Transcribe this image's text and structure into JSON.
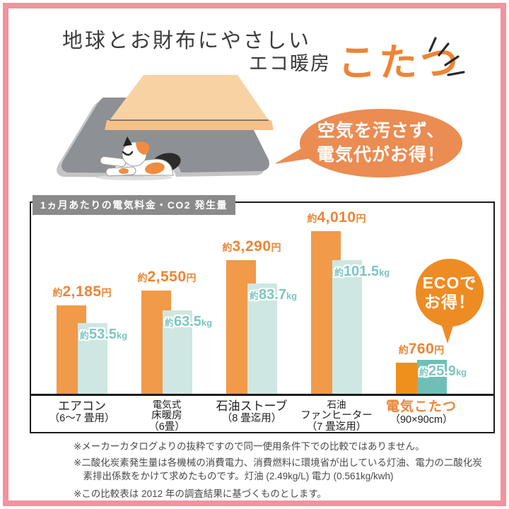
{
  "header": {
    "title": "地球とお財布にやさしい",
    "subtitle_prefix": "エコ暖房",
    "subtitle_main": "こたつ"
  },
  "bubble": {
    "lines": [
      "空気を汚さず、",
      "電気代がお得！"
    ]
  },
  "eco_badge": {
    "lines": [
      "ECOで",
      "お得！"
    ]
  },
  "chart_data": {
    "type": "bar",
    "title": "1ヵ月あたりの電気料金・CO2 発生量",
    "categories": [
      {
        "lines": [
          "エアコン",
          "（6～7 畳用）"
        ],
        "small": false,
        "highlight": false
      },
      {
        "lines": [
          "電気式",
          "床暖房",
          "（6畳）"
        ],
        "small": true,
        "highlight": false
      },
      {
        "lines": [
          "石油ストーブ",
          "（8 畳迄用）"
        ],
        "small": false,
        "highlight": false
      },
      {
        "lines": [
          "石油",
          "ファンヒーター",
          "（7 畳迄用）"
        ],
        "small": true,
        "highlight": false
      },
      {
        "lines": [
          "電気こたつ",
          "（90×90cm）"
        ],
        "small": false,
        "highlight": true
      }
    ],
    "series": [
      {
        "name": "電気料金",
        "prefix": "約",
        "unit": "円",
        "values": [
          2185,
          2550,
          3290,
          4010,
          760
        ],
        "labels": [
          "2,185",
          "2,550",
          "3,290",
          "4,010",
          "760"
        ]
      },
      {
        "name": "CO2発生量",
        "prefix": "約",
        "unit": "kg",
        "values": [
          53.5,
          63.5,
          83.7,
          101.5,
          25.9
        ],
        "labels": [
          "53.5",
          "63.5",
          "83.7",
          "101.5",
          "25.9"
        ]
      }
    ],
    "ylim_price": [
      0,
      4010
    ],
    "ylim_co2": [
      0,
      101.5
    ],
    "legend": "none",
    "grid": false
  },
  "footnotes": [
    "※メーカーカタログよりの抜粋ですので同一使用条件下での比較ではありません。",
    "※二酸化炭素発生量は各機械の消費電力、消費燃料に環境省が出している灯油、電力の二酸化炭素排出係数をかけて求めたものです。灯油 (2.49kg/L) 電力 (0.561kg/kwh)",
    "※この比較表は 2012 年の調査結果に基づくものとします。"
  ],
  "colors": {
    "frame_pink": "#f2939d",
    "accent_orange": "#ee8435",
    "badge_orange": "#ee8c24",
    "bubble_orange": "#eb8c52",
    "bar_orange": "#f19a49",
    "bar_orange_strong": "#f0901c",
    "bar_co2": "#cee7e2",
    "bar_co2_strong": "#6fbfb6",
    "co2_text": "#7cc6bf",
    "title_box_gray": "#8a8a8a"
  }
}
